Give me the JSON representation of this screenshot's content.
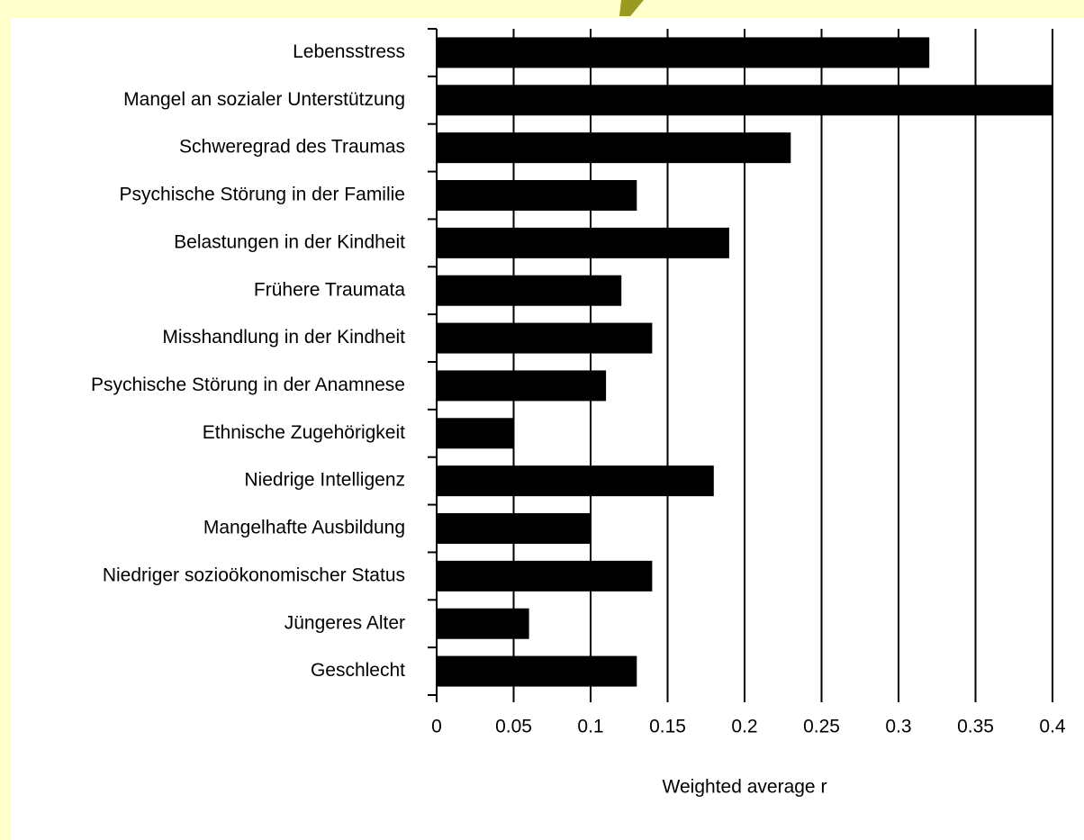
{
  "chart_data": {
    "type": "bar",
    "orientation": "horizontal",
    "x_label": "Weighted average r",
    "categories": [
      "Lebensstress",
      "Mangel an sozialer Unterstützung",
      "Schweregrad des Traumas",
      "Psychische Störung in der Familie",
      "Belastungen in der Kindheit",
      "Frühere Traumata",
      "Misshandlung in der Kindheit",
      "Psychische Störung in der Anamnese",
      "Ethnische Zugehörigkeit",
      "Niedrige Intelligenz",
      "Mangelhafte Ausbildung",
      "Niedriger sozioökonomischer Status",
      "Jüngeres Alter",
      "Geschlecht"
    ],
    "values": [
      0.32,
      0.4,
      0.23,
      0.13,
      0.19,
      0.12,
      0.14,
      0.11,
      0.05,
      0.18,
      0.1,
      0.14,
      0.06,
      0.13
    ],
    "color": "#000000",
    "xlim": [
      0,
      0.4
    ],
    "xticks": [
      0,
      0.05,
      0.1,
      0.15,
      0.2,
      0.25,
      0.3,
      0.35,
      0.4
    ],
    "grid": true
  }
}
